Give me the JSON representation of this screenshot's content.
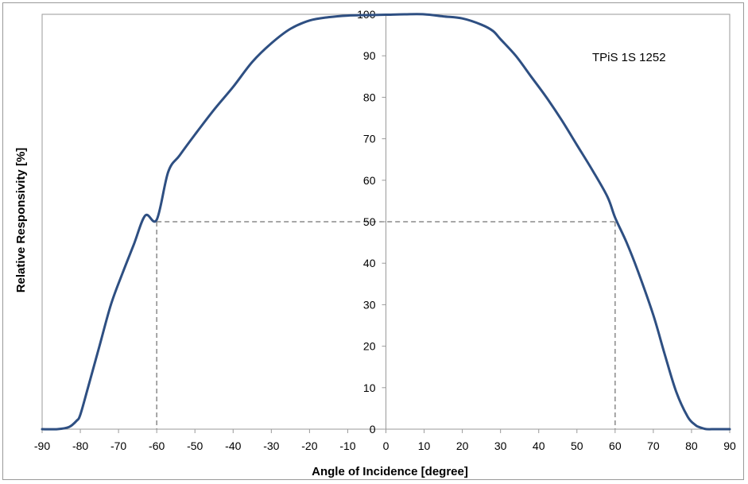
{
  "chart_data": {
    "type": "line",
    "title": "",
    "xlabel": "Angle of Incidence [degree]",
    "ylabel": "Relative Responsivity [%]",
    "xlim": [
      -90,
      90
    ],
    "ylim": [
      0,
      100
    ],
    "x_ticks": [
      -90,
      -80,
      -70,
      -60,
      -50,
      -40,
      -30,
      -20,
      -10,
      0,
      10,
      20,
      30,
      40,
      50,
      60,
      70,
      80,
      90
    ],
    "y_ticks": [
      0,
      10,
      20,
      30,
      40,
      50,
      60,
      70,
      80,
      90,
      100
    ],
    "grid": false,
    "line_color": "#2e4f82",
    "reference_color": "#8a8a8a",
    "annotation": "TPiS 1S 1252",
    "series": [
      {
        "x": [
          -90,
          -86,
          -83,
          -81,
          -80,
          -78,
          -75,
          -72,
          -69,
          -66,
          -63,
          -60,
          -57,
          -54,
          -50,
          -45,
          -40,
          -35,
          -30,
          -25,
          -20,
          -15,
          -10,
          -5,
          0,
          5,
          10,
          15,
          20,
          25,
          28,
          30,
          34,
          38,
          42,
          46,
          50,
          54,
          58,
          60,
          63,
          66,
          70,
          73,
          76,
          79,
          81,
          82,
          83,
          84,
          86,
          88,
          90
        ],
        "y": [
          0,
          0,
          0.5,
          2,
          3.5,
          10,
          20,
          30,
          37.5,
          44.5,
          51.5,
          50.5,
          62,
          66,
          71,
          77,
          82.5,
          88.5,
          93,
          96.5,
          98.5,
          99.3,
          99.7,
          99.8,
          99.9,
          100,
          100,
          99.5,
          99,
          97.5,
          96,
          94,
          90,
          85,
          80,
          74.5,
          68.5,
          62.5,
          56,
          51,
          45,
          38,
          27.5,
          18,
          9,
          3,
          1,
          0.5,
          0.2,
          0,
          0,
          0,
          0
        ]
      }
    ],
    "reference_lines": [
      {
        "x": -60,
        "y": 50
      },
      {
        "x": 60,
        "y": 50
      }
    ]
  }
}
